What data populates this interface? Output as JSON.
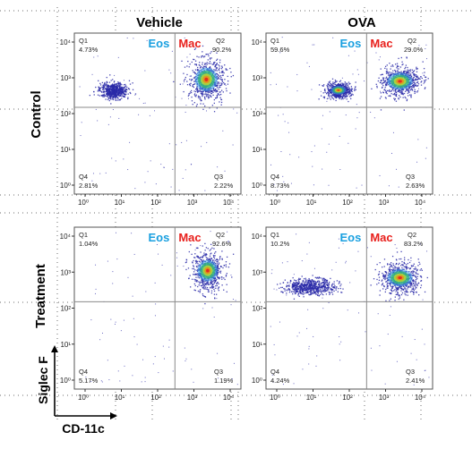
{
  "figure": {
    "columns": [
      "Vehicle",
      "OVA"
    ],
    "rows": [
      "Control",
      "Treatment"
    ],
    "y_axis_label": "Siglec F",
    "x_axis_label": "CD-11c",
    "gate_labels": {
      "left": "Eos",
      "right": "Mac"
    },
    "colors": {
      "eos": "#1aa0e0",
      "mac": "#e8201c",
      "dots": "#2a2aa8",
      "gate_line": "#8a8a8a",
      "dotted_grid": "#6d6d6d"
    }
  },
  "chart_data": [
    {
      "type": "scatter",
      "plot": "flow-cytometry density plot",
      "row": "Control",
      "column": "Vehicle",
      "xlabel": "CD-11c",
      "ylabel": "Siglec F",
      "scale": "log",
      "xlim": [
        1,
        10000
      ],
      "ylim": [
        1,
        10000
      ],
      "x_ticks": [
        "10^0",
        "10^1",
        "10^2",
        "10^3",
        "10^4"
      ],
      "y_ticks": [
        "10^0",
        "10^1",
        "10^2",
        "10^3",
        "10^4"
      ],
      "quadrants": [
        {
          "name": "Q1",
          "value": "4.73%"
        },
        {
          "name": "Q2",
          "value": "90.2%"
        },
        {
          "name": "Q3",
          "value": "2.22%"
        },
        {
          "name": "Q4",
          "value": "2.81%"
        }
      ],
      "populations": [
        {
          "name": "Eos",
          "x": 6,
          "y": 450
        },
        {
          "name": "Mac",
          "x": 2200,
          "y": 900
        }
      ]
    },
    {
      "type": "scatter",
      "plot": "flow-cytometry density plot",
      "row": "Control",
      "column": "OVA",
      "xlabel": "CD-11c",
      "ylabel": "Siglec F",
      "scale": "log",
      "xlim": [
        1,
        10000
      ],
      "ylim": [
        1,
        10000
      ],
      "x_ticks": [
        "10^0",
        "10^1",
        "10^2",
        "10^3",
        "10^4"
      ],
      "y_ticks": [
        "10^0",
        "10^1",
        "10^2",
        "10^3",
        "10^4"
      ],
      "quadrants": [
        {
          "name": "Q1",
          "value": "59.6%"
        },
        {
          "name": "Q2",
          "value": "29.0%"
        },
        {
          "name": "Q3",
          "value": "2.63%"
        },
        {
          "name": "Q4",
          "value": "8.73%"
        }
      ],
      "populations": [
        {
          "name": "Eos",
          "x": 50,
          "y": 450
        },
        {
          "name": "Mac",
          "x": 2500,
          "y": 800
        }
      ]
    },
    {
      "type": "scatter",
      "plot": "flow-cytometry density plot",
      "row": "Treatment",
      "column": "Vehicle",
      "xlabel": "CD-11c",
      "ylabel": "Siglec F",
      "scale": "log",
      "xlim": [
        1,
        10000
      ],
      "ylim": [
        1,
        10000
      ],
      "x_ticks": [
        "10^0",
        "10^1",
        "10^2",
        "10^3",
        "10^4"
      ],
      "y_ticks": [
        "10^0",
        "10^1",
        "10^2",
        "10^3",
        "10^4"
      ],
      "quadrants": [
        {
          "name": "Q1",
          "value": "1.04%"
        },
        {
          "name": "Q2",
          "value": "92.6%"
        },
        {
          "name": "Q3",
          "value": "1.19%"
        },
        {
          "name": "Q4",
          "value": "5.17%"
        }
      ],
      "populations": [
        {
          "name": "Mac",
          "x": 2400,
          "y": 1100
        }
      ]
    },
    {
      "type": "scatter",
      "plot": "flow-cytometry density plot",
      "row": "Treatment",
      "column": "OVA",
      "xlabel": "CD-11c",
      "ylabel": "Siglec F",
      "scale": "log",
      "xlim": [
        1,
        10000
      ],
      "ylim": [
        1,
        10000
      ],
      "x_ticks": [
        "10^0",
        "10^1",
        "10^2",
        "10^3",
        "10^4"
      ],
      "y_ticks": [
        "10^0",
        "10^1",
        "10^2",
        "10^3",
        "10^4"
      ],
      "quadrants": [
        {
          "name": "Q1",
          "value": "10.2%"
        },
        {
          "name": "Q2",
          "value": "83.2%"
        },
        {
          "name": "Q3",
          "value": "2.41%"
        },
        {
          "name": "Q4",
          "value": "4.24%"
        }
      ],
      "populations": [
        {
          "name": "Eos",
          "x": 8,
          "y": 400
        },
        {
          "name": "Mac",
          "x": 2500,
          "y": 700
        }
      ]
    }
  ]
}
